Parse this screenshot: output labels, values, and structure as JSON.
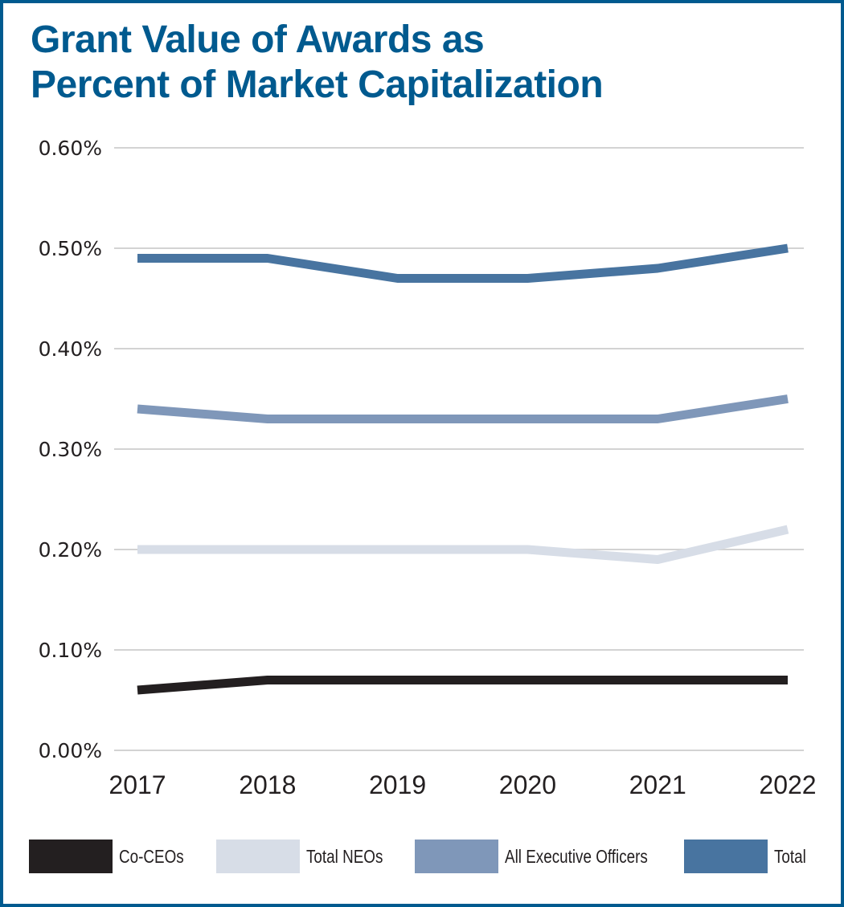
{
  "chart_data": {
    "type": "line",
    "title": "Grant Value of Awards as Percent of Market Capitalization",
    "title_lines": [
      "Grant Value of Awards as",
      "Percent of Market Capitalization"
    ],
    "xlabel": "",
    "ylabel": "",
    "categories": [
      "2017",
      "2018",
      "2019",
      "2020",
      "2021",
      "2022"
    ],
    "ylim": [
      0,
      0.6
    ],
    "yticks": [
      0.0,
      0.1,
      0.2,
      0.3,
      0.4,
      0.5,
      0.6
    ],
    "ytick_labels": [
      "0.00%",
      "0.10%",
      "0.20%",
      "0.30%",
      "0.40%",
      "0.50%",
      "0.60%"
    ],
    "grid": true,
    "legend_position": "bottom",
    "series": [
      {
        "name": "Co-CEOs",
        "color": "#231f20",
        "values": [
          0.06,
          0.07,
          0.07,
          0.07,
          0.07,
          0.07
        ]
      },
      {
        "name": "Total NEOs",
        "color": "#d7dde7",
        "values": [
          0.2,
          0.2,
          0.2,
          0.2,
          0.19,
          0.22
        ]
      },
      {
        "name": "All Executive Officers",
        "color": "#7f97b9",
        "values": [
          0.34,
          0.33,
          0.33,
          0.33,
          0.33,
          0.35
        ]
      },
      {
        "name": "Total",
        "color": "#4874a0",
        "values": [
          0.49,
          0.49,
          0.47,
          0.47,
          0.48,
          0.5
        ]
      }
    ]
  },
  "colors": {
    "frame": "#005a8f",
    "title": "#005a8f",
    "grid": "#d3d3d3",
    "text": "#231f20"
  }
}
